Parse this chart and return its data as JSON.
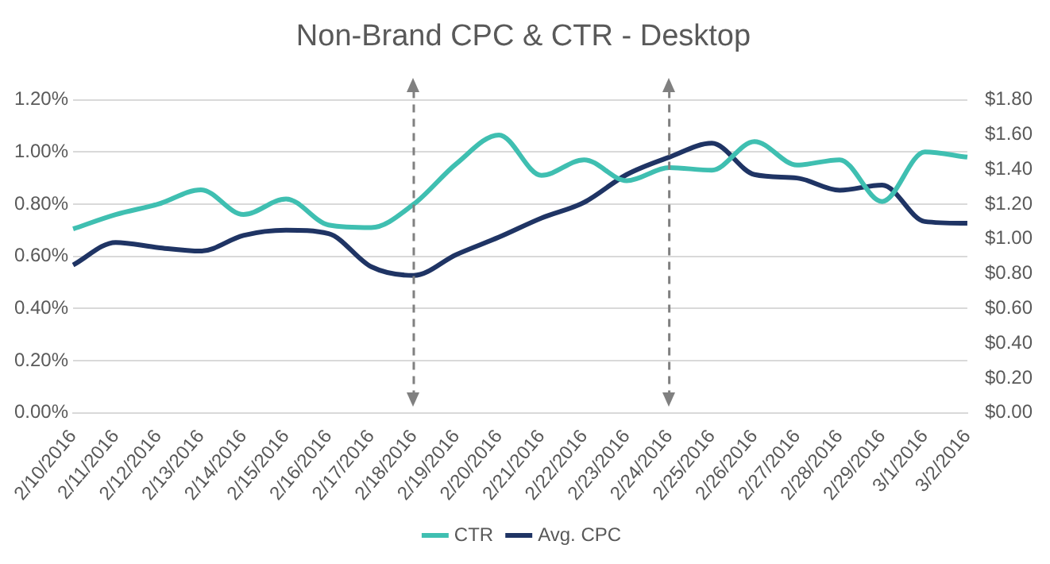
{
  "chart_data": {
    "type": "line",
    "title": "Non-Brand CPC & CTR - Desktop",
    "categories": [
      "2/10/2016",
      "2/11/2016",
      "2/12/2016",
      "2/13/2016",
      "2/14/2016",
      "2/15/2016",
      "2/16/2016",
      "2/17/2016",
      "2/18/2016",
      "2/19/2016",
      "2/20/2016",
      "2/21/2016",
      "2/22/2016",
      "2/23/2016",
      "2/24/2016",
      "2/25/2016",
      "2/26/2016",
      "2/27/2016",
      "2/28/2016",
      "2/29/2016",
      "3/1/2016",
      "3/2/2016"
    ],
    "series": [
      {
        "name": "CTR",
        "color": "#3fbfb1",
        "values": [
          0.705,
          0.76,
          0.8,
          0.855,
          0.76,
          0.82,
          0.72,
          0.71,
          0.8,
          0.955,
          1.065,
          0.91,
          0.97,
          0.89,
          0.94,
          0.93,
          1.04,
          0.95,
          0.97,
          0.81,
          1.0,
          0.98
        ]
      },
      {
        "name": "Avg. CPC",
        "color": "#1f3464",
        "axis": "y2",
        "values": [
          0.85,
          0.98,
          0.95,
          0.93,
          1.02,
          1.05,
          1.03,
          0.84,
          0.79,
          0.91,
          1.01,
          1.12,
          1.21,
          1.37,
          1.47,
          1.55,
          1.37,
          1.35,
          1.28,
          1.31,
          1.1,
          1.09
        ]
      }
    ],
    "ylim": [
      0,
      1.2
    ],
    "yticks": [
      {
        "value": 0,
        "label": "0.00%"
      },
      {
        "value": 0.2,
        "label": "0.20%"
      },
      {
        "value": 0.4,
        "label": "0.40%"
      },
      {
        "value": 0.6,
        "label": "0.60%"
      },
      {
        "value": 0.8,
        "label": "0.80%"
      },
      {
        "value": 1.0,
        "label": "1.00%"
      },
      {
        "value": 1.2,
        "label": "1.20%"
      }
    ],
    "y2lim": [
      0,
      1.8
    ],
    "y2ticks": [
      {
        "value": 0,
        "label": "$0.00"
      },
      {
        "value": 0.2,
        "label": "$0.20"
      },
      {
        "value": 0.4,
        "label": "$0.40"
      },
      {
        "value": 0.6,
        "label": "$0.60"
      },
      {
        "value": 0.8,
        "label": "$0.80"
      },
      {
        "value": 1.0,
        "label": "$1.00"
      },
      {
        "value": 1.2,
        "label": "$1.20"
      },
      {
        "value": 1.4,
        "label": "$1.40"
      },
      {
        "value": 1.6,
        "label": "$1.60"
      },
      {
        "value": 1.8,
        "label": "$1.80"
      }
    ],
    "ref_lines": [
      {
        "axis": "x",
        "value": "2/18/2016",
        "color": "#808080",
        "line_style": "dashed"
      },
      {
        "axis": "x",
        "value": "2/24/2016",
        "color": "#808080",
        "line_style": "dashed"
      }
    ],
    "grid": "y",
    "legend": "bottom",
    "marker": "none",
    "line_style": "solid"
  }
}
